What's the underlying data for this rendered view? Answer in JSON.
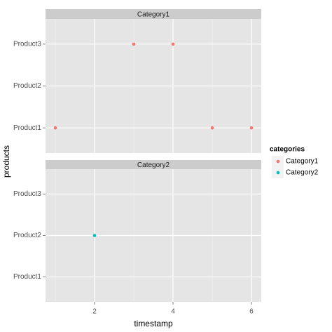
{
  "chart_data": {
    "type": "scatter",
    "xlabel": "timestamp",
    "ylabel": "products",
    "legend_title": "categories",
    "y_categories": [
      "Product1",
      "Product2",
      "Product3"
    ],
    "xlim": [
      0.75,
      6.25
    ],
    "xticks": [
      2,
      4,
      6
    ],
    "x_minor_ticks": [
      1,
      3,
      5
    ],
    "grid": true,
    "facet_by_series": true,
    "legend_position": "right",
    "series": [
      {
        "name": "Category1",
        "color": "#F8766D",
        "x": [
          1,
          3,
          4,
          5,
          6
        ],
        "y": [
          "Product1",
          "Product3",
          "Product3",
          "Product1",
          "Product1"
        ]
      },
      {
        "name": "Category2",
        "color": "#00BFC4",
        "x": [
          2
        ],
        "y": [
          "Product2"
        ]
      }
    ]
  }
}
